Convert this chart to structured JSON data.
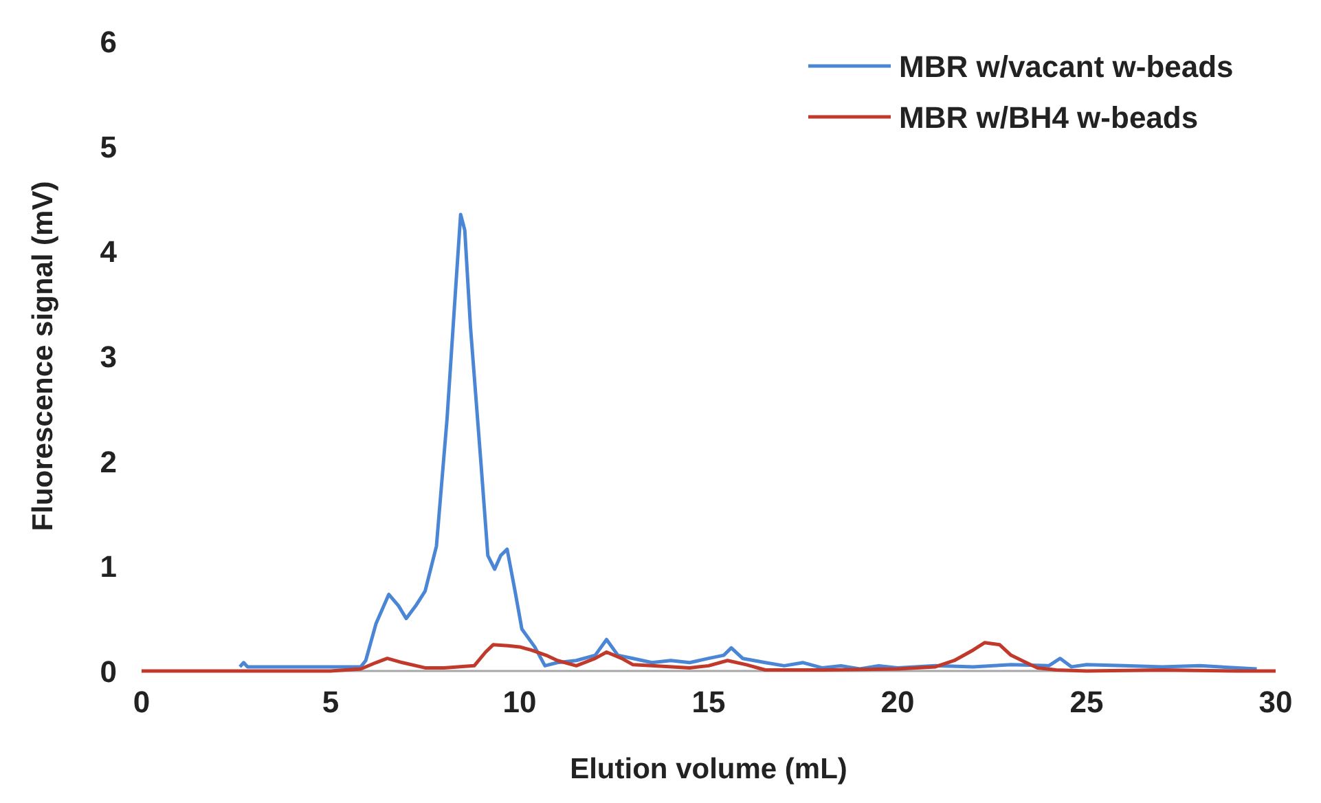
{
  "chart_data": {
    "type": "line",
    "xlabel": "Elution volume (mL)",
    "ylabel": "Fluorescence signal (mV)",
    "xlim": [
      0,
      30
    ],
    "xticks": [
      0,
      5,
      10,
      15,
      20,
      25,
      30
    ],
    "ylim": [
      0,
      6
    ],
    "yticks": [
      0,
      1,
      2,
      3,
      4,
      5,
      6
    ],
    "grid": false,
    "legend": "top right",
    "marker": "none",
    "line_style": "solid",
    "series": [
      {
        "name": "MBR w/vacant w-beads",
        "color": "#4a86d4",
        "x": [
          2.6,
          2.7,
          2.8,
          4,
          5,
          5.8,
          5.93,
          6.2,
          6.54,
          6.8,
          7.0,
          7.25,
          7.5,
          7.8,
          8.08,
          8.3,
          8.44,
          8.55,
          8.7,
          8.98,
          9.16,
          9.34,
          9.5,
          9.67,
          9.88,
          10.06,
          10.4,
          10.67,
          11,
          11.5,
          12,
          12.3,
          12.6,
          13,
          13.5,
          14,
          14.5,
          15,
          15.4,
          15.6,
          15.9,
          16.5,
          17,
          17.5,
          18,
          18.5,
          19,
          19.5,
          20,
          21,
          22,
          23,
          24,
          24.3,
          24.6,
          25,
          26,
          27,
          28,
          29,
          29.5
        ],
        "values": [
          0.04,
          0.08,
          0.04,
          0.04,
          0.04,
          0.04,
          0.1,
          0.45,
          0.73,
          0.62,
          0.5,
          0.62,
          0.76,
          1.19,
          2.4,
          3.6,
          4.35,
          4.2,
          3.28,
          1.97,
          1.1,
          0.97,
          1.1,
          1.16,
          0.76,
          0.4,
          0.23,
          0.05,
          0.08,
          0.1,
          0.15,
          0.3,
          0.15,
          0.12,
          0.08,
          0.1,
          0.08,
          0.12,
          0.15,
          0.22,
          0.12,
          0.08,
          0.05,
          0.08,
          0.03,
          0.05,
          0.02,
          0.05,
          0.03,
          0.05,
          0.04,
          0.06,
          0.05,
          0.12,
          0.04,
          0.06,
          0.05,
          0.04,
          0.05,
          0.03,
          0.02
        ]
      },
      {
        "name": "MBR w/BH4 w-beads",
        "color": "#c0392b",
        "x": [
          0,
          2,
          4,
          5,
          5.8,
          6.2,
          6.5,
          6.9,
          7.5,
          8,
          8.8,
          9.1,
          9.3,
          9.7,
          10,
          10.3,
          10.7,
          11,
          11.5,
          12,
          12.3,
          12.7,
          13,
          13.5,
          14.5,
          15,
          15.5,
          16,
          16.5,
          18,
          20,
          21,
          21.5,
          22,
          22.3,
          22.7,
          23,
          23.4,
          23.7,
          24.2,
          25,
          27,
          29,
          30
        ],
        "values": [
          0,
          0,
          0,
          0,
          0.02,
          0.08,
          0.12,
          0.08,
          0.03,
          0.03,
          0.05,
          0.18,
          0.25,
          0.24,
          0.23,
          0.2,
          0.15,
          0.1,
          0.05,
          0.12,
          0.18,
          0.12,
          0.06,
          0.05,
          0.03,
          0.05,
          0.1,
          0.06,
          0.01,
          0.01,
          0.02,
          0.04,
          0.1,
          0.2,
          0.27,
          0.25,
          0.15,
          0.08,
          0.03,
          0.01,
          0,
          0.01,
          0,
          0
        ]
      }
    ]
  }
}
